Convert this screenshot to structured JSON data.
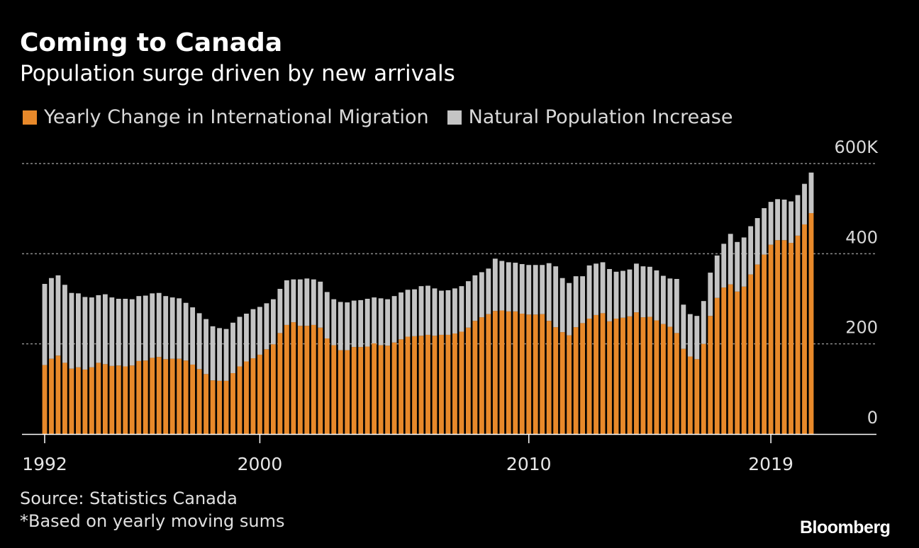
{
  "header": {
    "title": "Coming to Canada",
    "subtitle": "Population surge driven by new arrivals"
  },
  "colors": {
    "migration": "#e8892a",
    "natural": "#c4c4c4",
    "grid": "#8a8a8a"
  },
  "footer": {
    "source": "Source: Statistics Canada",
    "note": "*Based on yearly moving sums",
    "logo": "Bloomberg"
  },
  "chart_data": {
    "type": "bar",
    "stacked": true,
    "title": "Coming to Canada",
    "subtitle": "Population surge driven by new arrivals",
    "legend": [
      "Yearly Change in International Migration",
      "Natural Population Increase"
    ],
    "legend_position": "top-left",
    "ylim": [
      0,
      600000
    ],
    "y_ticks": [
      0,
      200,
      400,
      600
    ],
    "y_tick_labels": [
      "0",
      "200",
      "400",
      "600K"
    ],
    "x_ticks": [
      1992,
      2000,
      2010,
      2019
    ],
    "x_tick_labels": [
      "1992",
      "2000",
      "2010",
      "2019"
    ],
    "x_start": 1992,
    "x_step": 0.25,
    "series": [
      {
        "name": "Yearly Change in International Migration",
        "values": [
          153,
          167,
          174,
          158,
          145,
          148,
          143,
          148,
          158,
          155,
          151,
          152,
          150,
          152,
          162,
          163,
          169,
          171,
          166,
          167,
          167,
          163,
          154,
          144,
          133,
          119,
          118,
          118,
          135,
          150,
          161,
          168,
          176,
          188,
          199,
          224,
          242,
          248,
          240,
          240,
          242,
          236,
          212,
          197,
          186,
          186,
          193,
          193,
          194,
          201,
          197,
          196,
          203,
          210,
          216,
          217,
          218,
          220,
          218,
          220,
          220,
          223,
          227,
          236,
          251,
          259,
          266,
          273,
          274,
          272,
          272,
          267,
          265,
          265,
          266,
          251,
          237,
          226,
          219,
          237,
          246,
          256,
          264,
          268,
          250,
          256,
          258,
          261,
          270,
          259,
          260,
          252,
          244,
          238,
          224,
          189,
          172,
          166,
          200,
          262,
          302,
          325,
          332,
          316,
          327,
          354,
          376,
          398,
          420,
          430,
          430,
          424,
          440,
          465,
          490
        ],
        "type": "bar"
      },
      {
        "name": "Natural Population Increase",
        "values": [
          180,
          179,
          178,
          173,
          168,
          164,
          161,
          155,
          150,
          155,
          152,
          148,
          150,
          147,
          144,
          144,
          143,
          142,
          140,
          136,
          134,
          128,
          127,
          124,
          122,
          120,
          117,
          115,
          112,
          110,
          106,
          109,
          106,
          102,
          100,
          98,
          99,
          95,
          103,
          105,
          101,
          102,
          103,
          102,
          107,
          106,
          103,
          104,
          106,
          102,
          104,
          103,
          103,
          104,
          104,
          104,
          110,
          109,
          105,
          98,
          99,
          100,
          101,
          103,
          101,
          100,
          101,
          116,
          110,
          109,
          108,
          110,
          110,
          110,
          109,
          128,
          135,
          120,
          116,
          113,
          104,
          118,
          114,
          113,
          116,
          104,
          104,
          104,
          108,
          113,
          111,
          111,
          107,
          107,
          120,
          98,
          94,
          96,
          95,
          96,
          94,
          97,
          112,
          110,
          109,
          107,
          103,
          103,
          95,
          91,
          90,
          92,
          90,
          90,
          90
        ],
        "type": "bar"
      }
    ],
    "units": "thousands"
  }
}
